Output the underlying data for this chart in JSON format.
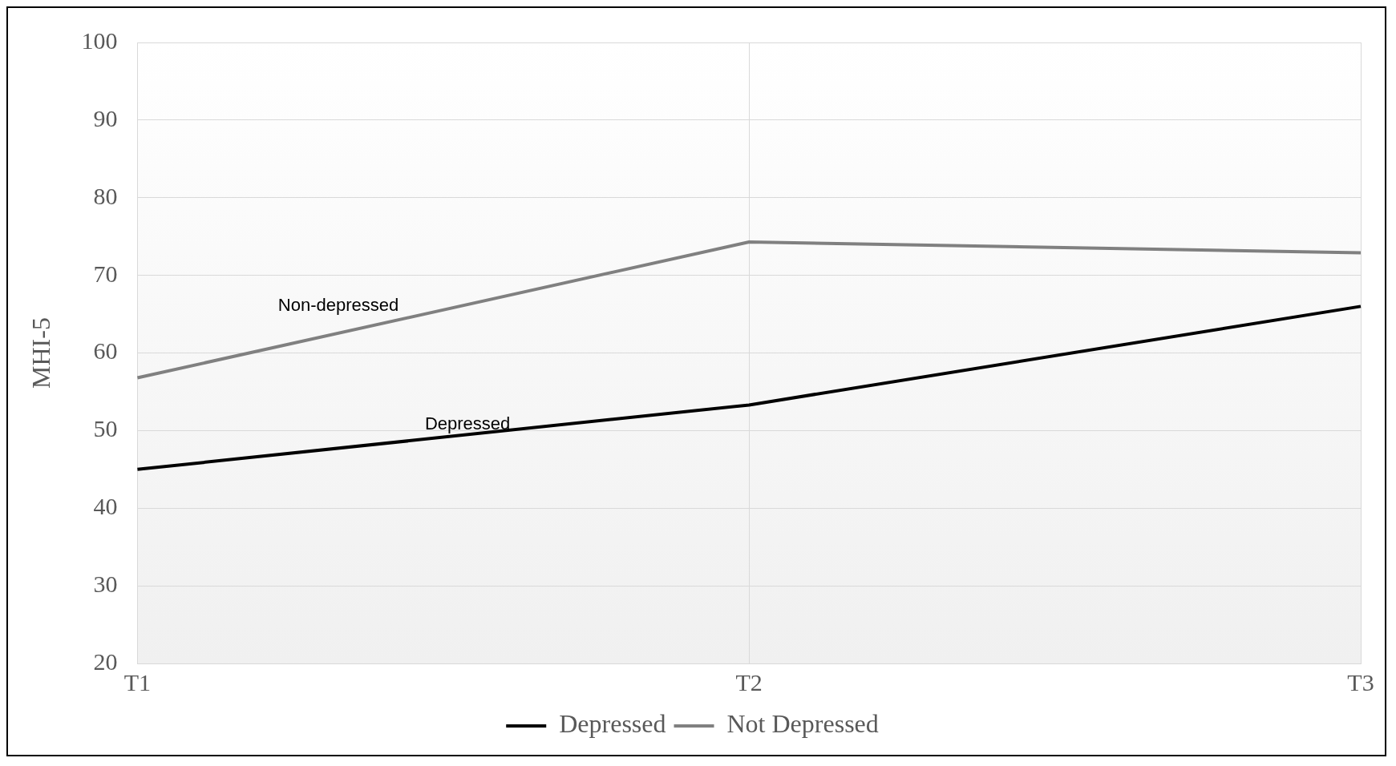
{
  "chart_data": {
    "type": "line",
    "ylabel": "MHI-5",
    "categories": [
      "T1",
      "T2",
      "T3"
    ],
    "series": [
      {
        "name": "Depressed",
        "color": "#000000",
        "values": [
          45.0,
          53.3,
          66.0
        ]
      },
      {
        "name": "Not Depressed",
        "color": "#808080",
        "values": [
          56.8,
          74.3,
          72.9
        ]
      }
    ],
    "ylim": [
      20,
      100
    ],
    "yticks": [
      20,
      30,
      40,
      50,
      60,
      70,
      80,
      90,
      100
    ],
    "grid": true,
    "legend": "bottom",
    "marker": "none",
    "line_style": "solid",
    "annotations": [
      "Non-depressed",
      "Depressed"
    ]
  }
}
